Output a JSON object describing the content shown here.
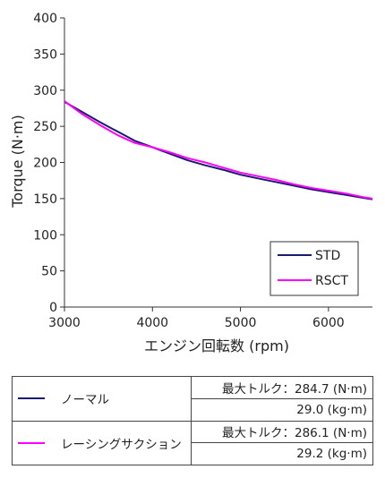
{
  "chart_data": {
    "type": "line",
    "xlabel": "エンジン回転数 (rpm)",
    "ylabel": "Torque (N·m)",
    "xlim": [
      3000,
      6500
    ],
    "ylim": [
      0,
      400
    ],
    "xticks": [
      3000,
      4000,
      5000,
      6000
    ],
    "yticks": [
      0,
      50,
      100,
      150,
      200,
      250,
      300,
      350,
      400
    ],
    "grid": false,
    "legend_position": "bottom-right",
    "series": [
      {
        "name": "STD",
        "color": "#1a1a6e",
        "x": [
          3000,
          3200,
          3400,
          3600,
          3800,
          4000,
          4200,
          4400,
          4600,
          4800,
          5000,
          5200,
          5400,
          5600,
          5800,
          6000,
          6200,
          6400,
          6500
        ],
        "y": [
          284,
          270,
          256,
          243,
          230,
          221,
          212,
          203,
          196,
          190,
          183,
          178,
          173,
          168,
          163,
          159,
          155,
          151,
          149
        ]
      },
      {
        "name": "RSCT",
        "color": "#ff00ff",
        "x": [
          3000,
          3200,
          3400,
          3600,
          3800,
          4000,
          4200,
          4400,
          4600,
          4800,
          5000,
          5200,
          5400,
          5600,
          5800,
          6000,
          6200,
          6400,
          6500
        ],
        "y": [
          285,
          267,
          252,
          238,
          227,
          221,
          214,
          206,
          200,
          193,
          186,
          181,
          176,
          170,
          165,
          161,
          157,
          152,
          150
        ]
      }
    ]
  },
  "table": {
    "rows": [
      {
        "legend_color": "#1a1a6e",
        "label": "ノーマル",
        "max_torque": "最大トルク：284.7 (N·m)",
        "kgm": "29.0 (kg·m)"
      },
      {
        "legend_color": "#ff00ff",
        "label": "レーシングサクション",
        "max_torque": "最大トルク：286.1 (N·m)",
        "kgm": "29.2 (kg·m)"
      }
    ]
  }
}
